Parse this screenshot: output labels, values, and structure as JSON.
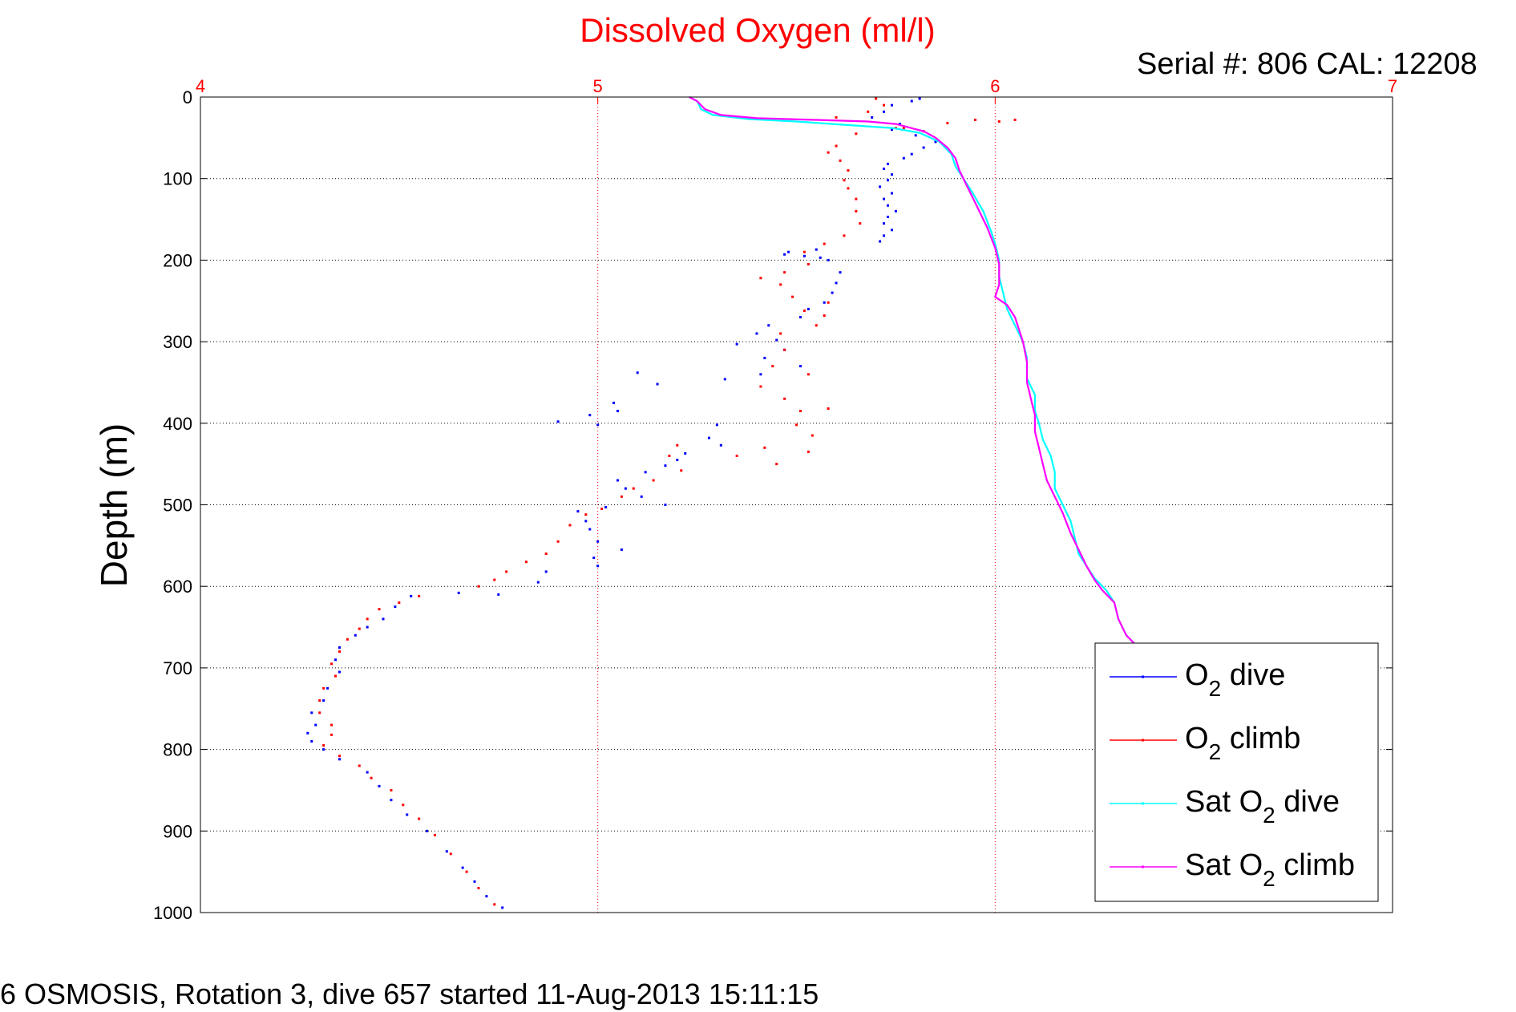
{
  "chart_data": {
    "type": "scatter",
    "title": "Dissolved Oxygen (ml/l)",
    "subtitle": "Serial #: 806  CAL: 12208",
    "ylabel": "Depth (m)",
    "xlabel": "",
    "footer": "6 OSMOSIS, Rotation 3, dive 657 started 11-Aug-2013 15:11:15",
    "xlim": [
      4,
      7
    ],
    "ylim": [
      0,
      1000
    ],
    "y_reversed": true,
    "x_axis_position": "top",
    "x_ticks": [
      "4",
      "5",
      "6",
      "7"
    ],
    "y_ticks": [
      "0",
      "100",
      "200",
      "300",
      "400",
      "500",
      "600",
      "700",
      "800",
      "900",
      "1000"
    ],
    "grid": true,
    "legend_position": "bottom-right",
    "colors": {
      "title": "#ff0000",
      "x_ticks": "#ff0000",
      "x_grid": "#ff0000",
      "y_grid": "#000000"
    },
    "series": [
      {
        "name": "O2 dive",
        "legend_main": "O",
        "legend_sub": "2",
        "legend_rest": " dive",
        "color": "#0000ff",
        "style": "points",
        "points": [
          [
            5.81,
            2
          ],
          [
            5.79,
            5
          ],
          [
            5.74,
            10
          ],
          [
            5.72,
            18
          ],
          [
            5.69,
            25
          ],
          [
            5.76,
            33
          ],
          [
            5.74,
            40
          ],
          [
            5.8,
            47
          ],
          [
            5.85,
            55
          ],
          [
            5.82,
            62
          ],
          [
            5.79,
            70
          ],
          [
            5.77,
            75
          ],
          [
            5.73,
            82
          ],
          [
            5.72,
            88
          ],
          [
            5.74,
            95
          ],
          [
            5.73,
            102
          ],
          [
            5.71,
            110
          ],
          [
            5.74,
            118
          ],
          [
            5.72,
            125
          ],
          [
            5.73,
            133
          ],
          [
            5.75,
            140
          ],
          [
            5.73,
            147
          ],
          [
            5.72,
            155
          ],
          [
            5.74,
            163
          ],
          [
            5.72,
            170
          ],
          [
            5.71,
            177
          ],
          [
            5.55,
            187
          ],
          [
            5.48,
            190
          ],
          [
            5.47,
            193
          ],
          [
            5.52,
            195
          ],
          [
            5.56,
            197
          ],
          [
            5.58,
            200
          ],
          [
            5.61,
            215
          ],
          [
            5.6,
            228
          ],
          [
            5.59,
            240
          ],
          [
            5.57,
            252
          ],
          [
            5.53,
            260
          ],
          [
            5.51,
            270
          ],
          [
            5.43,
            280
          ],
          [
            5.4,
            290
          ],
          [
            5.45,
            298
          ],
          [
            5.35,
            303
          ],
          [
            5.47,
            310
          ],
          [
            5.42,
            320
          ],
          [
            5.51,
            330
          ],
          [
            5.41,
            340
          ],
          [
            5.32,
            346
          ],
          [
            5.1,
            338
          ],
          [
            5.15,
            352
          ],
          [
            5.04,
            375
          ],
          [
            4.98,
            390
          ],
          [
            5.0,
            402
          ],
          [
            4.9,
            398
          ],
          [
            5.05,
            385
          ],
          [
            5.3,
            402
          ],
          [
            5.28,
            418
          ],
          [
            5.31,
            427
          ],
          [
            5.22,
            437
          ],
          [
            5.2,
            445
          ],
          [
            5.17,
            452
          ],
          [
            5.12,
            460
          ],
          [
            5.05,
            470
          ],
          [
            5.07,
            480
          ],
          [
            5.11,
            490
          ],
          [
            5.17,
            500
          ],
          [
            5.02,
            503
          ],
          [
            4.95,
            508
          ],
          [
            4.97,
            520
          ],
          [
            4.98,
            530
          ],
          [
            5.0,
            545
          ],
          [
            5.06,
            555
          ],
          [
            4.99,
            565
          ],
          [
            5.0,
            575
          ],
          [
            4.87,
            582
          ],
          [
            4.85,
            595
          ],
          [
            4.75,
            610
          ],
          [
            4.65,
            608
          ],
          [
            4.53,
            612
          ],
          [
            4.49,
            625
          ],
          [
            4.46,
            640
          ],
          [
            4.42,
            650
          ],
          [
            4.39,
            660
          ],
          [
            4.35,
            675
          ],
          [
            4.34,
            690
          ],
          [
            4.35,
            705
          ],
          [
            4.32,
            725
          ],
          [
            4.31,
            740
          ],
          [
            4.28,
            755
          ],
          [
            4.29,
            770
          ],
          [
            4.27,
            780
          ],
          [
            4.28,
            790
          ],
          [
            4.31,
            800
          ],
          [
            4.35,
            812
          ],
          [
            4.42,
            828
          ],
          [
            4.45,
            845
          ],
          [
            4.48,
            862
          ],
          [
            4.52,
            880
          ],
          [
            4.57,
            900
          ],
          [
            4.62,
            925
          ],
          [
            4.66,
            945
          ],
          [
            4.69,
            962
          ],
          [
            4.72,
            980
          ],
          [
            4.76,
            994
          ]
        ]
      },
      {
        "name": "O2 climb",
        "legend_main": "O",
        "legend_sub": "2",
        "legend_rest": " climb",
        "color": "#ff0000",
        "style": "points",
        "points": [
          [
            5.7,
            2
          ],
          [
            5.72,
            10
          ],
          [
            5.68,
            18
          ],
          [
            5.6,
            25
          ],
          [
            5.75,
            38
          ],
          [
            5.65,
            45
          ],
          [
            5.77,
            38
          ],
          [
            5.82,
            42
          ],
          [
            5.88,
            32
          ],
          [
            5.95,
            28
          ],
          [
            6.01,
            30
          ],
          [
            6.05,
            28
          ],
          [
            5.6,
            60
          ],
          [
            5.58,
            68
          ],
          [
            5.61,
            78
          ],
          [
            5.63,
            90
          ],
          [
            5.62,
            102
          ],
          [
            5.63,
            112
          ],
          [
            5.65,
            125
          ],
          [
            5.65,
            140
          ],
          [
            5.66,
            155
          ],
          [
            5.62,
            170
          ],
          [
            5.57,
            180
          ],
          [
            5.52,
            190
          ],
          [
            5.53,
            205
          ],
          [
            5.47,
            215
          ],
          [
            5.41,
            222
          ],
          [
            5.46,
            230
          ],
          [
            5.49,
            245
          ],
          [
            5.58,
            252
          ],
          [
            5.52,
            262
          ],
          [
            5.57,
            268
          ],
          [
            5.55,
            280
          ],
          [
            5.46,
            290
          ],
          [
            5.47,
            310
          ],
          [
            5.44,
            330
          ],
          [
            5.53,
            340
          ],
          [
            5.41,
            355
          ],
          [
            5.47,
            370
          ],
          [
            5.51,
            385
          ],
          [
            5.58,
            382
          ],
          [
            5.5,
            402
          ],
          [
            5.54,
            415
          ],
          [
            5.42,
            430
          ],
          [
            5.53,
            435
          ],
          [
            5.45,
            450
          ],
          [
            5.35,
            440
          ],
          [
            5.2,
            427
          ],
          [
            5.18,
            440
          ],
          [
            5.21,
            458
          ],
          [
            5.14,
            470
          ],
          [
            5.09,
            480
          ],
          [
            5.06,
            490
          ],
          [
            5.01,
            505
          ],
          [
            4.97,
            512
          ],
          [
            4.93,
            525
          ],
          [
            4.9,
            545
          ],
          [
            4.87,
            560
          ],
          [
            4.82,
            570
          ],
          [
            4.77,
            582
          ],
          [
            4.74,
            592
          ],
          [
            4.7,
            600
          ],
          [
            4.55,
            612
          ],
          [
            4.5,
            620
          ],
          [
            4.45,
            628
          ],
          [
            4.42,
            640
          ],
          [
            4.4,
            652
          ],
          [
            4.37,
            665
          ],
          [
            4.35,
            680
          ],
          [
            4.33,
            695
          ],
          [
            4.34,
            710
          ],
          [
            4.31,
            725
          ],
          [
            4.3,
            740
          ],
          [
            4.3,
            755
          ],
          [
            4.33,
            770
          ],
          [
            4.33,
            782
          ],
          [
            4.31,
            795
          ],
          [
            4.35,
            808
          ],
          [
            4.4,
            820
          ],
          [
            4.43,
            835
          ],
          [
            4.48,
            850
          ],
          [
            4.51,
            868
          ],
          [
            4.55,
            885
          ],
          [
            4.59,
            905
          ],
          [
            4.63,
            928
          ],
          [
            4.67,
            950
          ],
          [
            4.7,
            970
          ],
          [
            4.74,
            990
          ]
        ]
      },
      {
        "name": "Sat O2 dive",
        "legend_main": "Sat O",
        "legend_sub": "2",
        "legend_rest": " dive",
        "color": "#00ffff",
        "style": "line",
        "points": [
          [
            5.23,
            0
          ],
          [
            5.25,
            5
          ],
          [
            5.26,
            15
          ],
          [
            5.29,
            22
          ],
          [
            5.38,
            27
          ],
          [
            5.5,
            30
          ],
          [
            5.62,
            34
          ],
          [
            5.74,
            38
          ],
          [
            5.81,
            44
          ],
          [
            5.86,
            55
          ],
          [
            5.89,
            70
          ],
          [
            5.9,
            85
          ],
          [
            5.92,
            100
          ],
          [
            5.94,
            115
          ],
          [
            5.97,
            140
          ],
          [
            5.99,
            165
          ],
          [
            6.0,
            180
          ],
          [
            6.01,
            200
          ],
          [
            6.01,
            220
          ],
          [
            6.02,
            240
          ],
          [
            6.03,
            260
          ],
          [
            6.05,
            280
          ],
          [
            6.07,
            300
          ],
          [
            6.08,
            320
          ],
          [
            6.08,
            345
          ],
          [
            6.1,
            365
          ],
          [
            6.1,
            385
          ],
          [
            6.11,
            400
          ],
          [
            6.12,
            420
          ],
          [
            6.14,
            440
          ],
          [
            6.15,
            460
          ],
          [
            6.15,
            480
          ],
          [
            6.17,
            500
          ],
          [
            6.19,
            520
          ],
          [
            6.2,
            540
          ],
          [
            6.21,
            560
          ],
          [
            6.23,
            575
          ],
          [
            6.25,
            590
          ],
          [
            6.28,
            605
          ],
          [
            6.3,
            620
          ],
          [
            6.31,
            640
          ],
          [
            6.33,
            660
          ],
          [
            6.35,
            670
          ]
        ]
      },
      {
        "name": "Sat O2 climb",
        "legend_main": "Sat O",
        "legend_sub": "2",
        "legend_rest": " climb",
        "color": "#ff00ff",
        "style": "line",
        "points": [
          [
            5.23,
            0
          ],
          [
            5.25,
            5
          ],
          [
            5.27,
            15
          ],
          [
            5.31,
            22
          ],
          [
            5.4,
            26
          ],
          [
            5.55,
            28
          ],
          [
            5.68,
            30
          ],
          [
            5.75,
            33
          ],
          [
            5.82,
            42
          ],
          [
            5.85,
            50
          ],
          [
            5.88,
            62
          ],
          [
            5.9,
            75
          ],
          [
            5.91,
            90
          ],
          [
            5.93,
            110
          ],
          [
            5.95,
            130
          ],
          [
            5.98,
            160
          ],
          [
            6.0,
            185
          ],
          [
            6.01,
            205
          ],
          [
            6.01,
            230
          ],
          [
            6.0,
            245
          ],
          [
            6.03,
            255
          ],
          [
            6.05,
            270
          ],
          [
            6.07,
            300
          ],
          [
            6.08,
            325
          ],
          [
            6.08,
            350
          ],
          [
            6.09,
            370
          ],
          [
            6.1,
            390
          ],
          [
            6.1,
            410
          ],
          [
            6.11,
            430
          ],
          [
            6.12,
            450
          ],
          [
            6.13,
            470
          ],
          [
            6.15,
            490
          ],
          [
            6.17,
            510
          ],
          [
            6.19,
            535
          ],
          [
            6.21,
            555
          ],
          [
            6.23,
            575
          ],
          [
            6.25,
            592
          ],
          [
            6.27,
            605
          ],
          [
            6.3,
            620
          ],
          [
            6.31,
            640
          ],
          [
            6.33,
            660
          ],
          [
            6.35,
            670
          ]
        ]
      }
    ]
  }
}
